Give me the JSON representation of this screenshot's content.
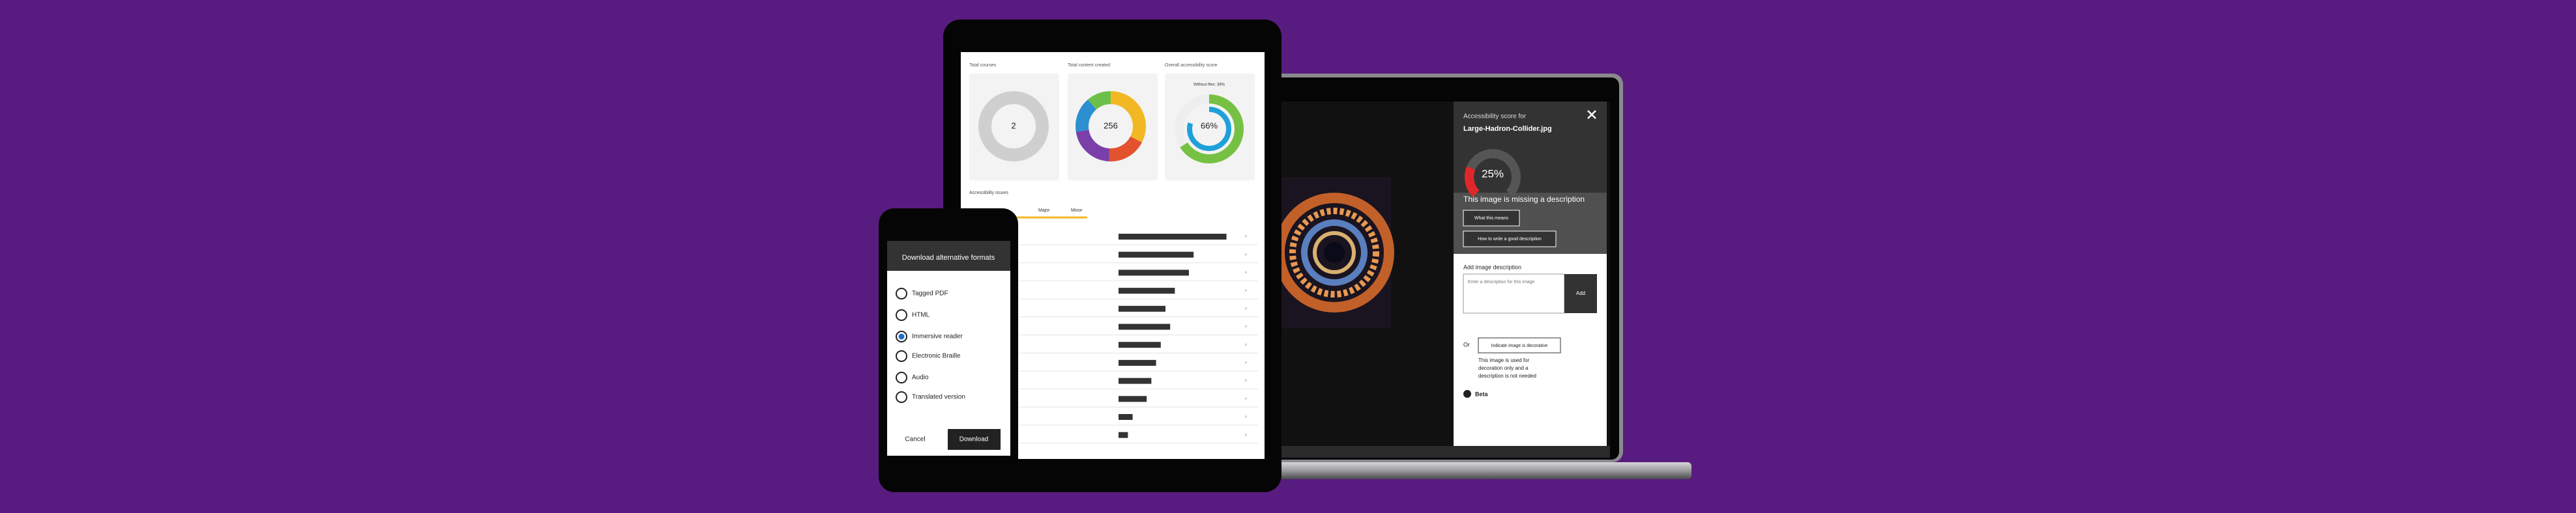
{
  "laptop_panel": {
    "heading": "Accessibility score for",
    "file_name": "Large-Hadron-Collider.jpg",
    "score": 25,
    "score_label": "25%",
    "alert": "This image is missing a description",
    "buttons": [
      "What this means",
      "How to write a good description"
    ],
    "field_label": "Add image description",
    "placeholder": "Enter a description for this image",
    "add_button": "Add",
    "or": "Or",
    "decorative_button": "Indicate image is decorative",
    "decorative_note": [
      "This image is used for",
      "decoration only and a",
      "description is not needed"
    ],
    "beta": "Beta"
  },
  "tablet": {
    "cards": [
      {
        "label": "Total courses",
        "value": 2
      },
      {
        "label": "Total content created",
        "value": 256
      },
      {
        "label": "Overall accessibility score",
        "value": 66,
        "value_label": "66%",
        "note": "Without files: 38%"
      }
    ],
    "section": "Accessibility issues",
    "tabs": [
      "Major",
      "Minor"
    ],
    "issue_counts": [
      23,
      16,
      15,
      12,
      10,
      11,
      9,
      8,
      7,
      6,
      3,
      2
    ]
  },
  "phone": {
    "title": "Download alternative formats",
    "options": [
      "Tagged PDF",
      "HTML",
      "Immersive reader",
      "Electronic Braille",
      "Audio",
      "Translated version"
    ],
    "selected": 2,
    "cancel": "Cancel",
    "download": "Download"
  }
}
